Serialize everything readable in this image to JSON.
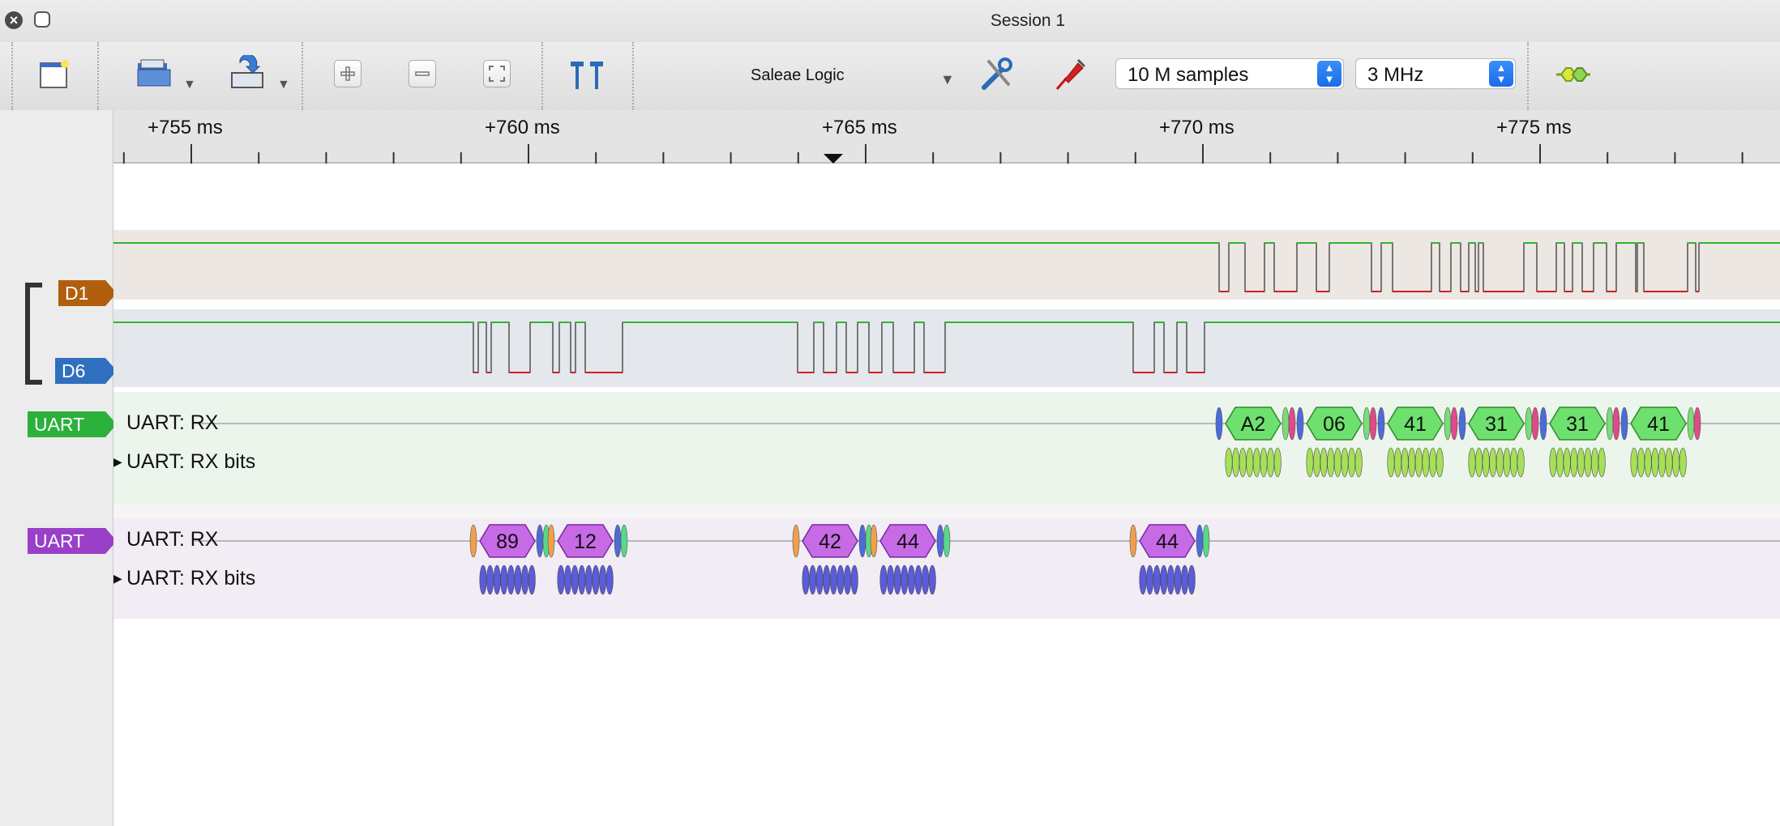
{
  "window": {
    "title": "Session 1"
  },
  "toolbar": {
    "device": "Saleae Logic",
    "samples": "10 M samples",
    "rate": "3 MHz"
  },
  "ruler": {
    "ticks": [
      {
        "label": "+755 ms",
        "x": 236
      },
      {
        "label": "+760 ms",
        "x": 652
      },
      {
        "label": "+765 ms",
        "x": 1068
      },
      {
        "label": "+770 ms",
        "x": 1484
      },
      {
        "label": "+775 ms",
        "x": 1900
      }
    ]
  },
  "channels": {
    "d1": {
      "label": "D1",
      "color": "#b15f0e"
    },
    "d6": {
      "label": "D6",
      "color": "#2f6fbf"
    }
  },
  "analyzers": [
    {
      "tag": "UART",
      "color": "#2bb13c",
      "rx": "UART: RX",
      "bits": "UART: RX bits",
      "bytes": [
        "A2",
        "06",
        "41",
        "31",
        "31",
        "41"
      ]
    },
    {
      "tag": "UART",
      "color": "#9a3fc8",
      "rx": "UART: RX",
      "bits": "UART: RX bits",
      "bytes": [
        "89",
        "12",
        "42",
        "44",
        "44"
      ]
    }
  ]
}
